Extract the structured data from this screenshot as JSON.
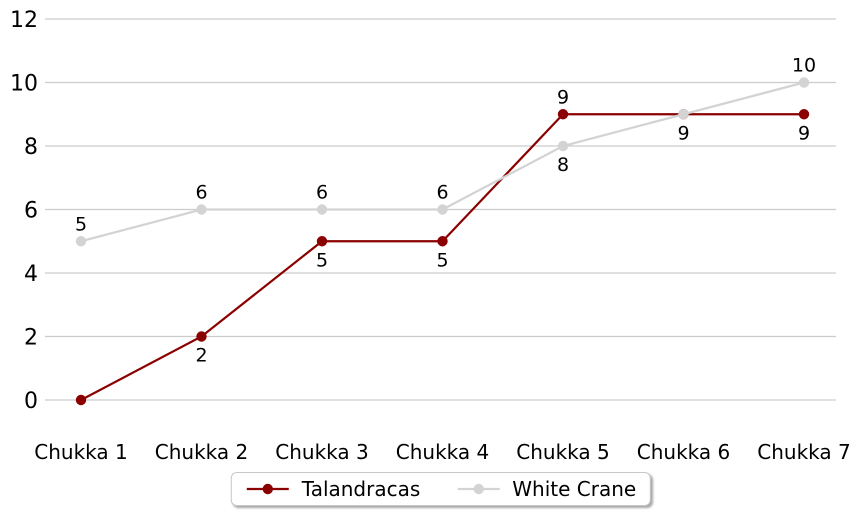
{
  "chart_data": {
    "type": "line",
    "title": "",
    "categories": [
      "Chukka 1",
      "Chukka 2",
      "Chukka 3",
      "Chukka 4",
      "Chukka 5",
      "Chukka 6",
      "Chukka 7"
    ],
    "series": [
      {
        "name": "Talandracas",
        "color": "#8b0000",
        "values": [
          0,
          2,
          5,
          5,
          9,
          9,
          9
        ],
        "point_labels": [
          "",
          "2",
          "5",
          "5",
          "9",
          "",
          "9"
        ],
        "label_positions": [
          "none",
          "below",
          "below",
          "below",
          "above",
          "none",
          "below"
        ]
      },
      {
        "name": "White Crane",
        "color": "#d3d3d3",
        "values": [
          5,
          6,
          6,
          6,
          8,
          9,
          10
        ],
        "point_labels": [
          "5",
          "6",
          "6",
          "6",
          "8",
          "9",
          "10"
        ],
        "label_positions": [
          "above",
          "above",
          "above",
          "above",
          "below",
          "below",
          "above"
        ]
      }
    ],
    "xlabel": "",
    "ylabel": "",
    "ylim": [
      0,
      12
    ],
    "yticks": [
      0,
      2,
      4,
      6,
      8,
      10,
      12
    ],
    "grid": "horizontal",
    "gridline_color": "#cccccc",
    "background_color": "#ffffff",
    "text_color": "#000000",
    "legend_position": "bottom-center"
  }
}
